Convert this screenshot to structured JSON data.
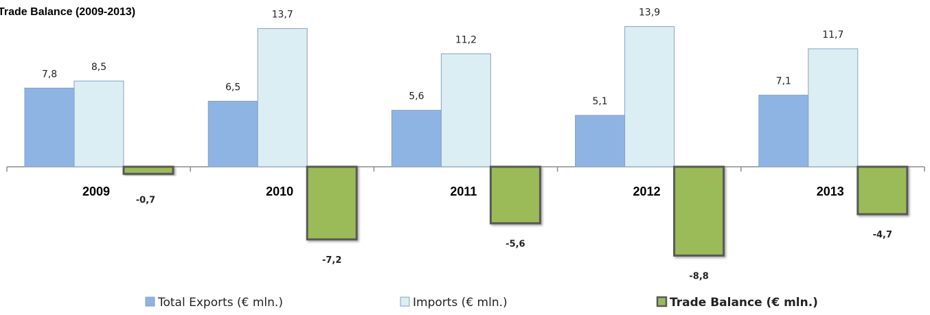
{
  "chart_data": {
    "type": "bar",
    "title": "Trade Balance (2009-2013)",
    "categories": [
      "2009",
      "2010",
      "2011",
      "2012",
      "2013"
    ],
    "series": [
      {
        "name": "Total Exports (€ mln.)",
        "values": [
          7.8,
          6.5,
          5.6,
          5.1,
          7.1
        ],
        "labels": [
          "7,8",
          "6,5",
          "5,6",
          "5,1",
          "7,1"
        ],
        "color": "#8EB4E3"
      },
      {
        "name": "Imports (€ mln.)",
        "values": [
          8.5,
          13.7,
          11.2,
          13.9,
          11.7
        ],
        "labels": [
          "8,5",
          "13,7",
          "11,2",
          "13,9",
          "11,7"
        ],
        "color": "#DBEEF4"
      },
      {
        "name": "Trade Balance (€ mln.)",
        "values": [
          -0.7,
          -7.2,
          -5.6,
          -8.8,
          -4.7
        ],
        "labels": [
          "-0,7",
          "-7,2",
          "-5,6",
          "-8,8",
          "-4,7"
        ],
        "color": "#9BBB59"
      }
    ],
    "legend": "bottom",
    "grid": false
  }
}
